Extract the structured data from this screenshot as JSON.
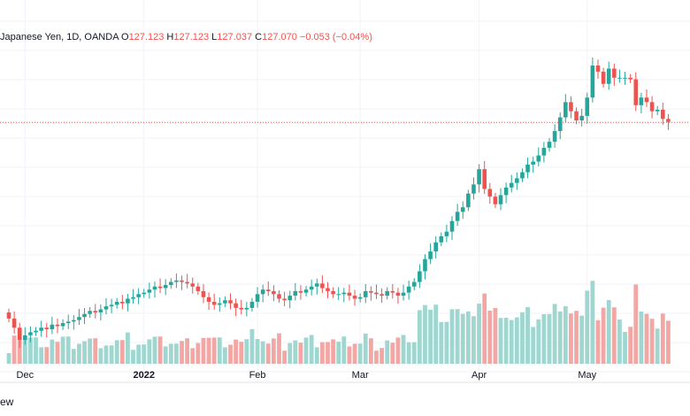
{
  "legend": {
    "symbol": "Japanese Yen, 1D, OANDA",
    "o_label": "O",
    "o_value": "127.123",
    "h_label": "H",
    "h_value": "127.123",
    "l_label": "L",
    "l_value": "127.037",
    "c_label": "C",
    "c_value": "127.070",
    "change": "−0.053 (−0.04%)"
  },
  "footer": {
    "text": "ew"
  },
  "colors": {
    "up": "#26a69a",
    "down": "#ef5350",
    "vol_up": "#9fd7d0",
    "vol_down": "#f2a7a5",
    "grid": "#f0f3fa"
  },
  "chart_data": {
    "type": "candlestick",
    "x_tick_labels": [
      "Dec",
      "2022",
      "Feb",
      "Mar",
      "Apr",
      "May"
    ],
    "last_close": 127.07,
    "close": [
      114.2,
      113.6,
      112.8,
      113.1,
      113.3,
      113.4,
      113.6,
      113.5,
      113.8,
      113.7,
      113.9,
      114.0,
      114.1,
      114.3,
      114.5,
      114.7,
      114.6,
      114.8,
      115.0,
      115.1,
      115.3,
      115.2,
      115.5,
      115.6,
      115.8,
      115.9,
      116.1,
      116.3,
      116.2,
      116.4,
      116.6,
      116.7,
      116.6,
      116.5,
      116.3,
      116.0,
      115.6,
      115.3,
      115.1,
      115.2,
      115.4,
      115.2,
      114.9,
      114.8,
      114.9,
      115.3,
      115.8,
      116.1,
      116.0,
      115.8,
      115.5,
      115.4,
      115.7,
      116.0,
      115.9,
      116.1,
      116.3,
      116.5,
      116.2,
      116.0,
      115.8,
      115.8,
      115.9,
      115.7,
      115.5,
      115.6,
      116.0,
      115.9,
      115.8,
      115.7,
      116.0,
      115.9,
      115.7,
      115.9,
      116.3,
      116.6,
      117.3,
      118.1,
      118.6,
      119.2,
      119.6,
      119.9,
      120.6,
      121.2,
      121.5,
      122.4,
      123.0,
      124.0,
      122.7,
      122.2,
      121.7,
      122.3,
      122.8,
      123.1,
      123.4,
      123.8,
      124.3,
      124.5,
      124.9,
      125.4,
      125.8,
      126.5,
      127.4,
      128.4,
      127.8,
      127.2,
      127.5,
      128.7,
      130.8,
      130.4,
      129.6,
      130.6,
      130.0,
      130.0,
      130.0,
      129.9,
      128.2,
      128.7,
      128.4,
      127.8,
      127.9,
      127.3,
      127.1
    ]
  }
}
